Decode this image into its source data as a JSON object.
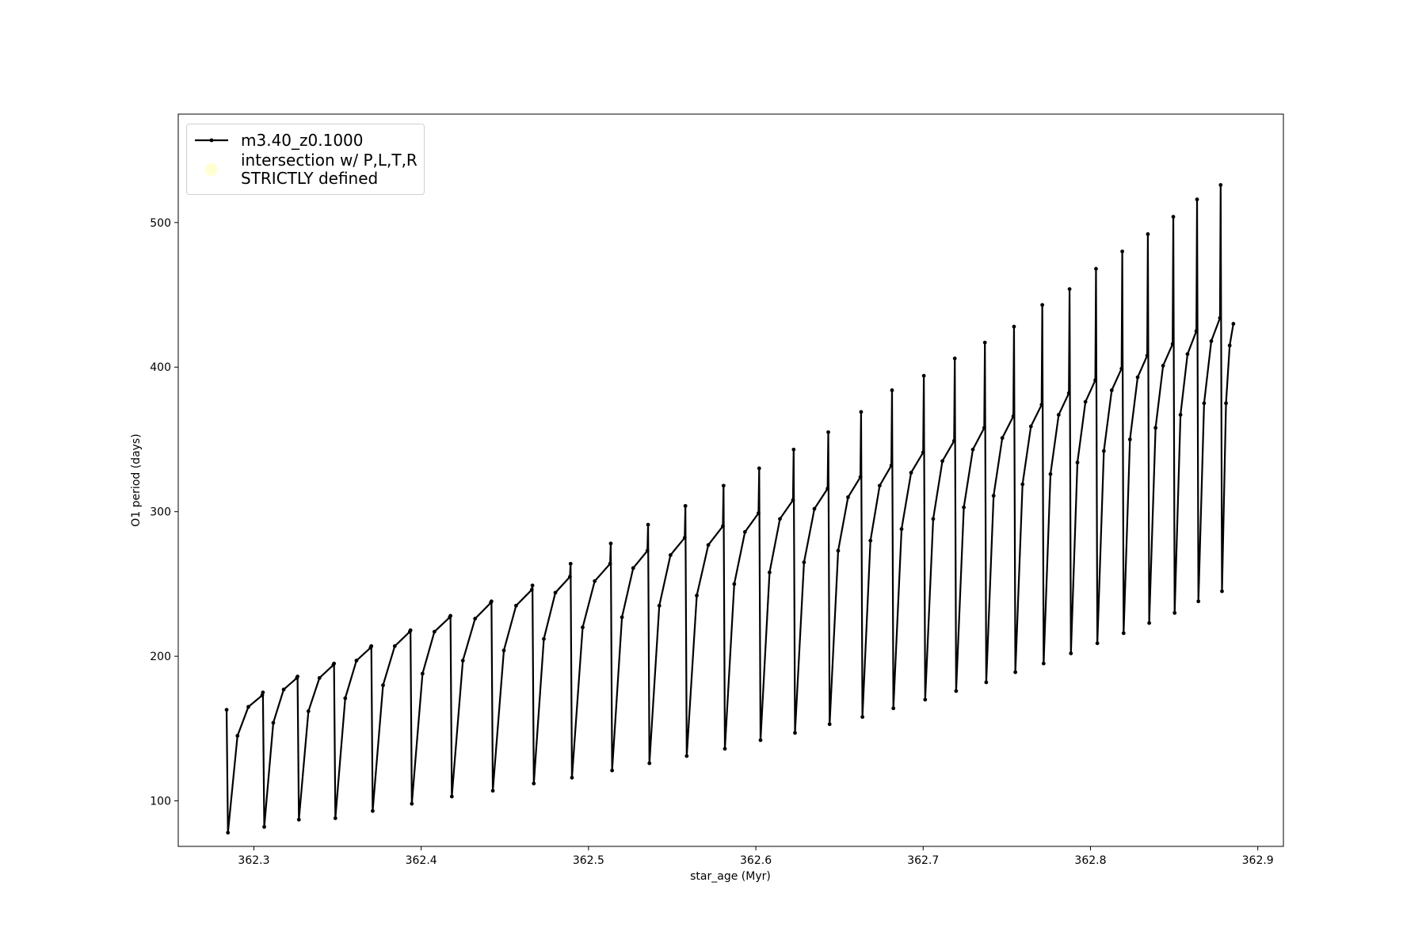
{
  "chart_data": {
    "type": "line",
    "xlabel": "star_age (Myr)",
    "ylabel": "O1 period (days)",
    "xlim": [
      362.2548,
      362.9153
    ],
    "ylim": [
      68.5,
      575
    ],
    "xticks": [
      362.3,
      362.4,
      362.5,
      362.6,
      362.7,
      362.8,
      362.9
    ],
    "yticks": [
      100,
      200,
      300,
      400,
      500
    ],
    "grid": false,
    "legend": "upper left",
    "series": [
      {
        "name": "m3.40_z0.1000",
        "color": "#000000",
        "marker": true,
        "x": [
          362.2837,
          362.2845,
          362.2902,
          362.2967,
          362.305,
          362.3054,
          362.3062,
          362.3116,
          362.3178,
          362.3257,
          362.3261,
          362.3269,
          362.3326,
          362.3392,
          362.3475,
          362.3479,
          362.3487,
          362.3546,
          362.3613,
          362.3698,
          362.3702,
          362.371,
          362.3772,
          362.3842,
          362.3932,
          362.3936,
          362.3944,
          362.4008,
          362.4079,
          362.4171,
          362.4175,
          362.4183,
          362.4249,
          362.4322,
          362.4416,
          362.442,
          362.4428,
          362.4494,
          362.4567,
          362.4661,
          362.4665,
          362.4673,
          362.4733,
          362.4802,
          362.4889,
          362.4893,
          362.4901,
          362.4965,
          362.5037,
          362.5129,
          362.5133,
          362.5141,
          362.52,
          362.5267,
          362.5352,
          362.5356,
          362.5364,
          362.5423,
          362.549,
          362.5575,
          362.5579,
          362.5587,
          362.5647,
          362.5716,
          362.5803,
          362.5807,
          362.5815,
          362.5871,
          362.5935,
          362.6016,
          362.602,
          362.6028,
          362.6082,
          362.6144,
          362.6222,
          362.6226,
          362.6234,
          362.6288,
          362.635,
          362.6429,
          362.6433,
          362.6441,
          362.6492,
          362.6551,
          362.6625,
          362.6629,
          362.6637,
          362.6685,
          362.674,
          362.681,
          362.6814,
          362.6822,
          362.6871,
          362.6928,
          362.7,
          362.7004,
          362.7012,
          362.706,
          362.7115,
          362.7185,
          362.7189,
          362.7197,
          362.7243,
          362.7297,
          362.7365,
          362.7369,
          362.7377,
          362.7421,
          362.7473,
          362.7539,
          362.7543,
          362.7551,
          362.7594,
          362.7644,
          362.7708,
          362.7712,
          362.772,
          362.7761,
          362.781,
          362.7871,
          362.7875,
          362.7883,
          362.7922,
          362.797,
          362.8029,
          362.8033,
          362.8041,
          362.808,
          362.8127,
          362.8186,
          362.819,
          362.8198,
          362.8236,
          362.8282,
          362.8339,
          362.8343,
          362.8351,
          362.8389,
          362.8434,
          362.8491,
          362.8495,
          362.8503,
          362.8538,
          362.858,
          362.8633,
          362.8637,
          362.8645,
          362.8679,
          362.8722,
          362.8774,
          362.8778,
          362.8786,
          362.881,
          362.8832,
          362.8854
        ],
        "values": [
          163,
          78,
          145,
          165,
          173,
          175,
          82,
          154,
          177,
          185,
          186,
          87,
          162,
          185,
          194,
          195,
          88,
          171,
          197,
          206,
          207,
          93,
          180,
          207,
          217,
          218,
          98,
          188,
          217,
          227,
          228,
          103,
          197,
          226,
          237,
          238,
          107,
          204,
          235,
          246,
          249,
          112,
          212,
          244,
          255,
          264,
          116,
          220,
          252,
          264,
          278,
          121,
          227,
          261,
          273,
          291,
          126,
          235,
          270,
          282,
          304,
          131,
          242,
          277,
          290,
          318,
          136,
          250,
          286,
          299,
          330,
          142,
          258,
          295,
          308,
          343,
          147,
          265,
          302,
          316,
          355,
          153,
          273,
          310,
          324,
          369,
          158,
          280,
          318,
          332,
          384,
          164,
          288,
          327,
          341,
          394,
          170,
          295,
          335,
          349,
          406,
          176,
          303,
          343,
          358,
          417,
          182,
          311,
          351,
          366,
          428,
          189,
          319,
          359,
          374,
          443,
          195,
          326,
          367,
          382,
          454,
          202,
          334,
          376,
          391,
          468,
          209,
          342,
          384,
          399,
          480,
          216,
          350,
          393,
          408,
          492,
          223,
          358,
          401,
          416,
          504,
          230,
          367,
          409,
          425,
          516,
          238,
          375,
          418,
          434,
          526,
          245,
          375,
          415,
          430
        ]
      },
      {
        "name": "intersection w/ P,L,T,R\nSTRICTLY defined",
        "color": "#ffffb3",
        "type": "scatter",
        "x": [],
        "values": []
      }
    ]
  }
}
